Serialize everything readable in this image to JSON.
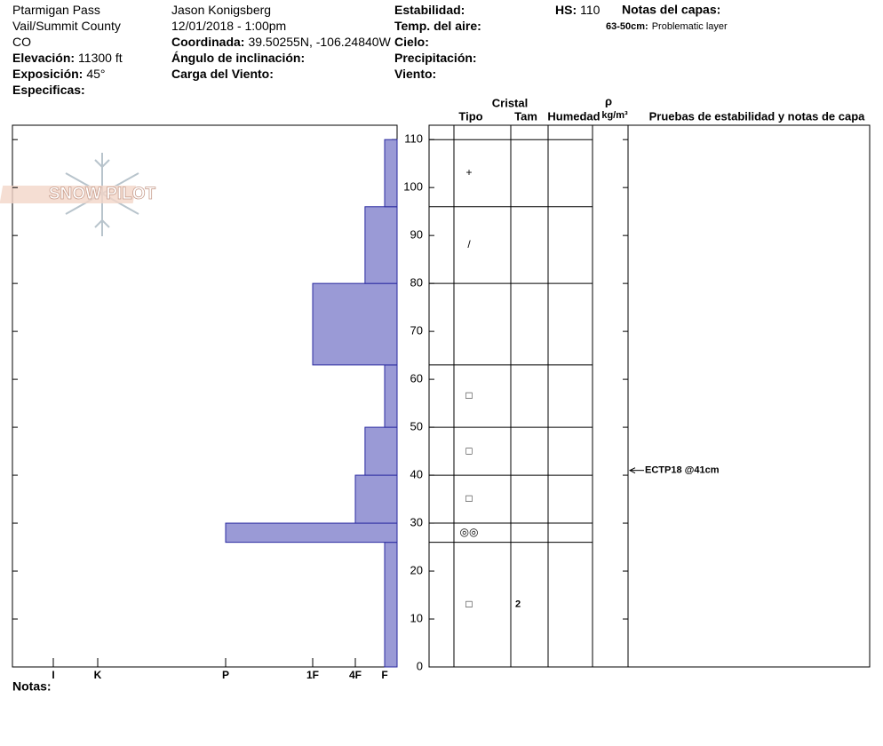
{
  "header": {
    "columns": [
      [
        {
          "text": "Ptarmigan Pass"
        },
        {
          "text": "Vail/Summit County"
        },
        {
          "text": "CO"
        },
        {
          "label": "Elevación:",
          "text": "11300 ft"
        },
        {
          "label": "Exposición:",
          "text": "45°"
        },
        {
          "label": "Especificas:"
        }
      ],
      [
        {
          "text": "Jason Konigsberg"
        },
        {
          "text": "12/01/2018 - 1:00pm"
        },
        {
          "label": "Coordinada:",
          "text": "39.50255N, -106.24840W"
        },
        {
          "label": "Ángulo de inclinación:"
        },
        {
          "label": "Carga del Viento:"
        }
      ],
      [
        {
          "label": "Estabilidad:"
        },
        {
          "label": "Temp. del aire:"
        },
        {
          "label": "Cielo:"
        },
        {
          "label": "Precipitación:"
        },
        {
          "label": "Viento:"
        }
      ]
    ],
    "hs": {
      "label": "HS:",
      "text": "110"
    },
    "notes_title": "Notas del capas:",
    "layer_note": {
      "label": "63-50cm:",
      "text": "Problematic layer"
    }
  },
  "logo": "SNOW PILOT",
  "notes_label": "Notas:",
  "chart_data": {
    "type": "snow-profile",
    "ylim": [
      0,
      113
    ],
    "yticks": [
      0,
      10,
      20,
      30,
      40,
      50,
      60,
      70,
      80,
      90,
      100,
      110
    ],
    "xlim": [
      7,
      0
    ],
    "xticks": [
      {
        "value": 6,
        "label": "I"
      },
      {
        "value": 5,
        "label": "K"
      },
      {
        "value": 4,
        "label": "P"
      },
      {
        "value": 3,
        "label": "1F"
      },
      {
        "value": 2,
        "label": "4F"
      },
      {
        "value": 1,
        "label": "F"
      }
    ],
    "headers": {
      "crystal": "Cristal",
      "type": "Tipo",
      "size": "Tam",
      "moisture": "Humedad",
      "rho": "ρ",
      "density": "kg/m³",
      "tests": "Pruebas de estabilidad y notas de capa"
    },
    "layers": [
      {
        "bottom": 0,
        "top": 26,
        "hardness": 1,
        "crystal": "□",
        "size": "2"
      },
      {
        "bottom": 26,
        "top": 30,
        "hardness": 4,
        "crystal": "◎◎"
      },
      {
        "bottom": 30,
        "top": 40,
        "hardness": 2,
        "crystal": "□"
      },
      {
        "bottom": 40,
        "top": 50,
        "hardness": 1.67,
        "crystal": "□"
      },
      {
        "bottom": 50,
        "top": 63,
        "hardness": 1,
        "crystal": "□"
      },
      {
        "bottom": 63,
        "top": 80,
        "hardness": 3
      },
      {
        "bottom": 80,
        "top": 96,
        "hardness": 1.67,
        "crystal": "/"
      },
      {
        "bottom": 96,
        "top": 110,
        "hardness": 1,
        "crystal": "+"
      }
    ],
    "tests": [
      {
        "depth": 41,
        "label": "ECTP18 @41cm"
      }
    ]
  }
}
